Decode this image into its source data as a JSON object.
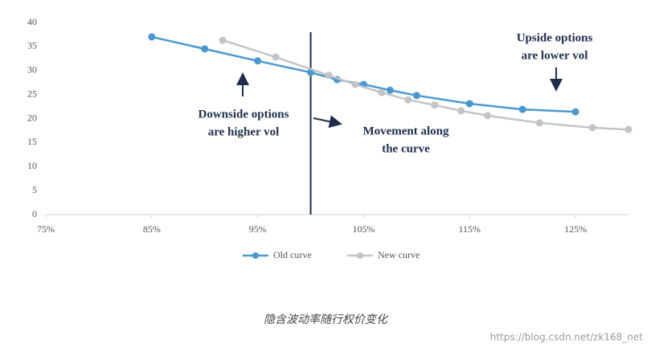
{
  "chart_data": {
    "type": "line",
    "xlim": [
      75,
      130
    ],
    "xticks": [
      {
        "value": 75,
        "label": "75%"
      },
      {
        "value": 85,
        "label": "85%"
      },
      {
        "value": 95,
        "label": "95%"
      },
      {
        "value": 105,
        "label": "105%"
      },
      {
        "value": 115,
        "label": "115%"
      },
      {
        "value": 125,
        "label": "125%"
      }
    ],
    "ylim": [
      0,
      40
    ],
    "yticks": [
      0,
      5,
      10,
      15,
      20,
      25,
      30,
      35,
      40
    ],
    "series": [
      {
        "name": "Old curve",
        "color": "#4a98d0",
        "x": [
          85,
          90,
          95,
          100,
          102.5,
          105,
          107.5,
          110,
          115,
          120,
          125
        ],
        "values": [
          37,
          34.5,
          32,
          29.6,
          28.1,
          27.1,
          25.9,
          24.8,
          23.1,
          21.9,
          21.4
        ]
      },
      {
        "name": "New curve",
        "color": "#c4c4c4",
        "x": [
          91.7,
          96.7,
          101.7,
          104.2,
          106.7,
          109.2,
          111.7,
          114.2,
          116.7,
          121.6,
          126.6,
          130
        ],
        "values": [
          36.3,
          32.8,
          29,
          27.1,
          25.4,
          23.9,
          22.8,
          21.6,
          20.6,
          19.1,
          18.1,
          17.7
        ]
      }
    ],
    "vline": 100,
    "annotations": [
      {
        "lines": [
          "Upside options",
          "are lower vol"
        ]
      },
      {
        "lines": [
          "Downside options",
          "are higher vol"
        ]
      },
      {
        "lines": [
          "Movement along",
          "the curve"
        ]
      }
    ],
    "caption": "隐含波动率随行权价变化",
    "watermark": "https://blog.csdn.net/zk168_net"
  }
}
